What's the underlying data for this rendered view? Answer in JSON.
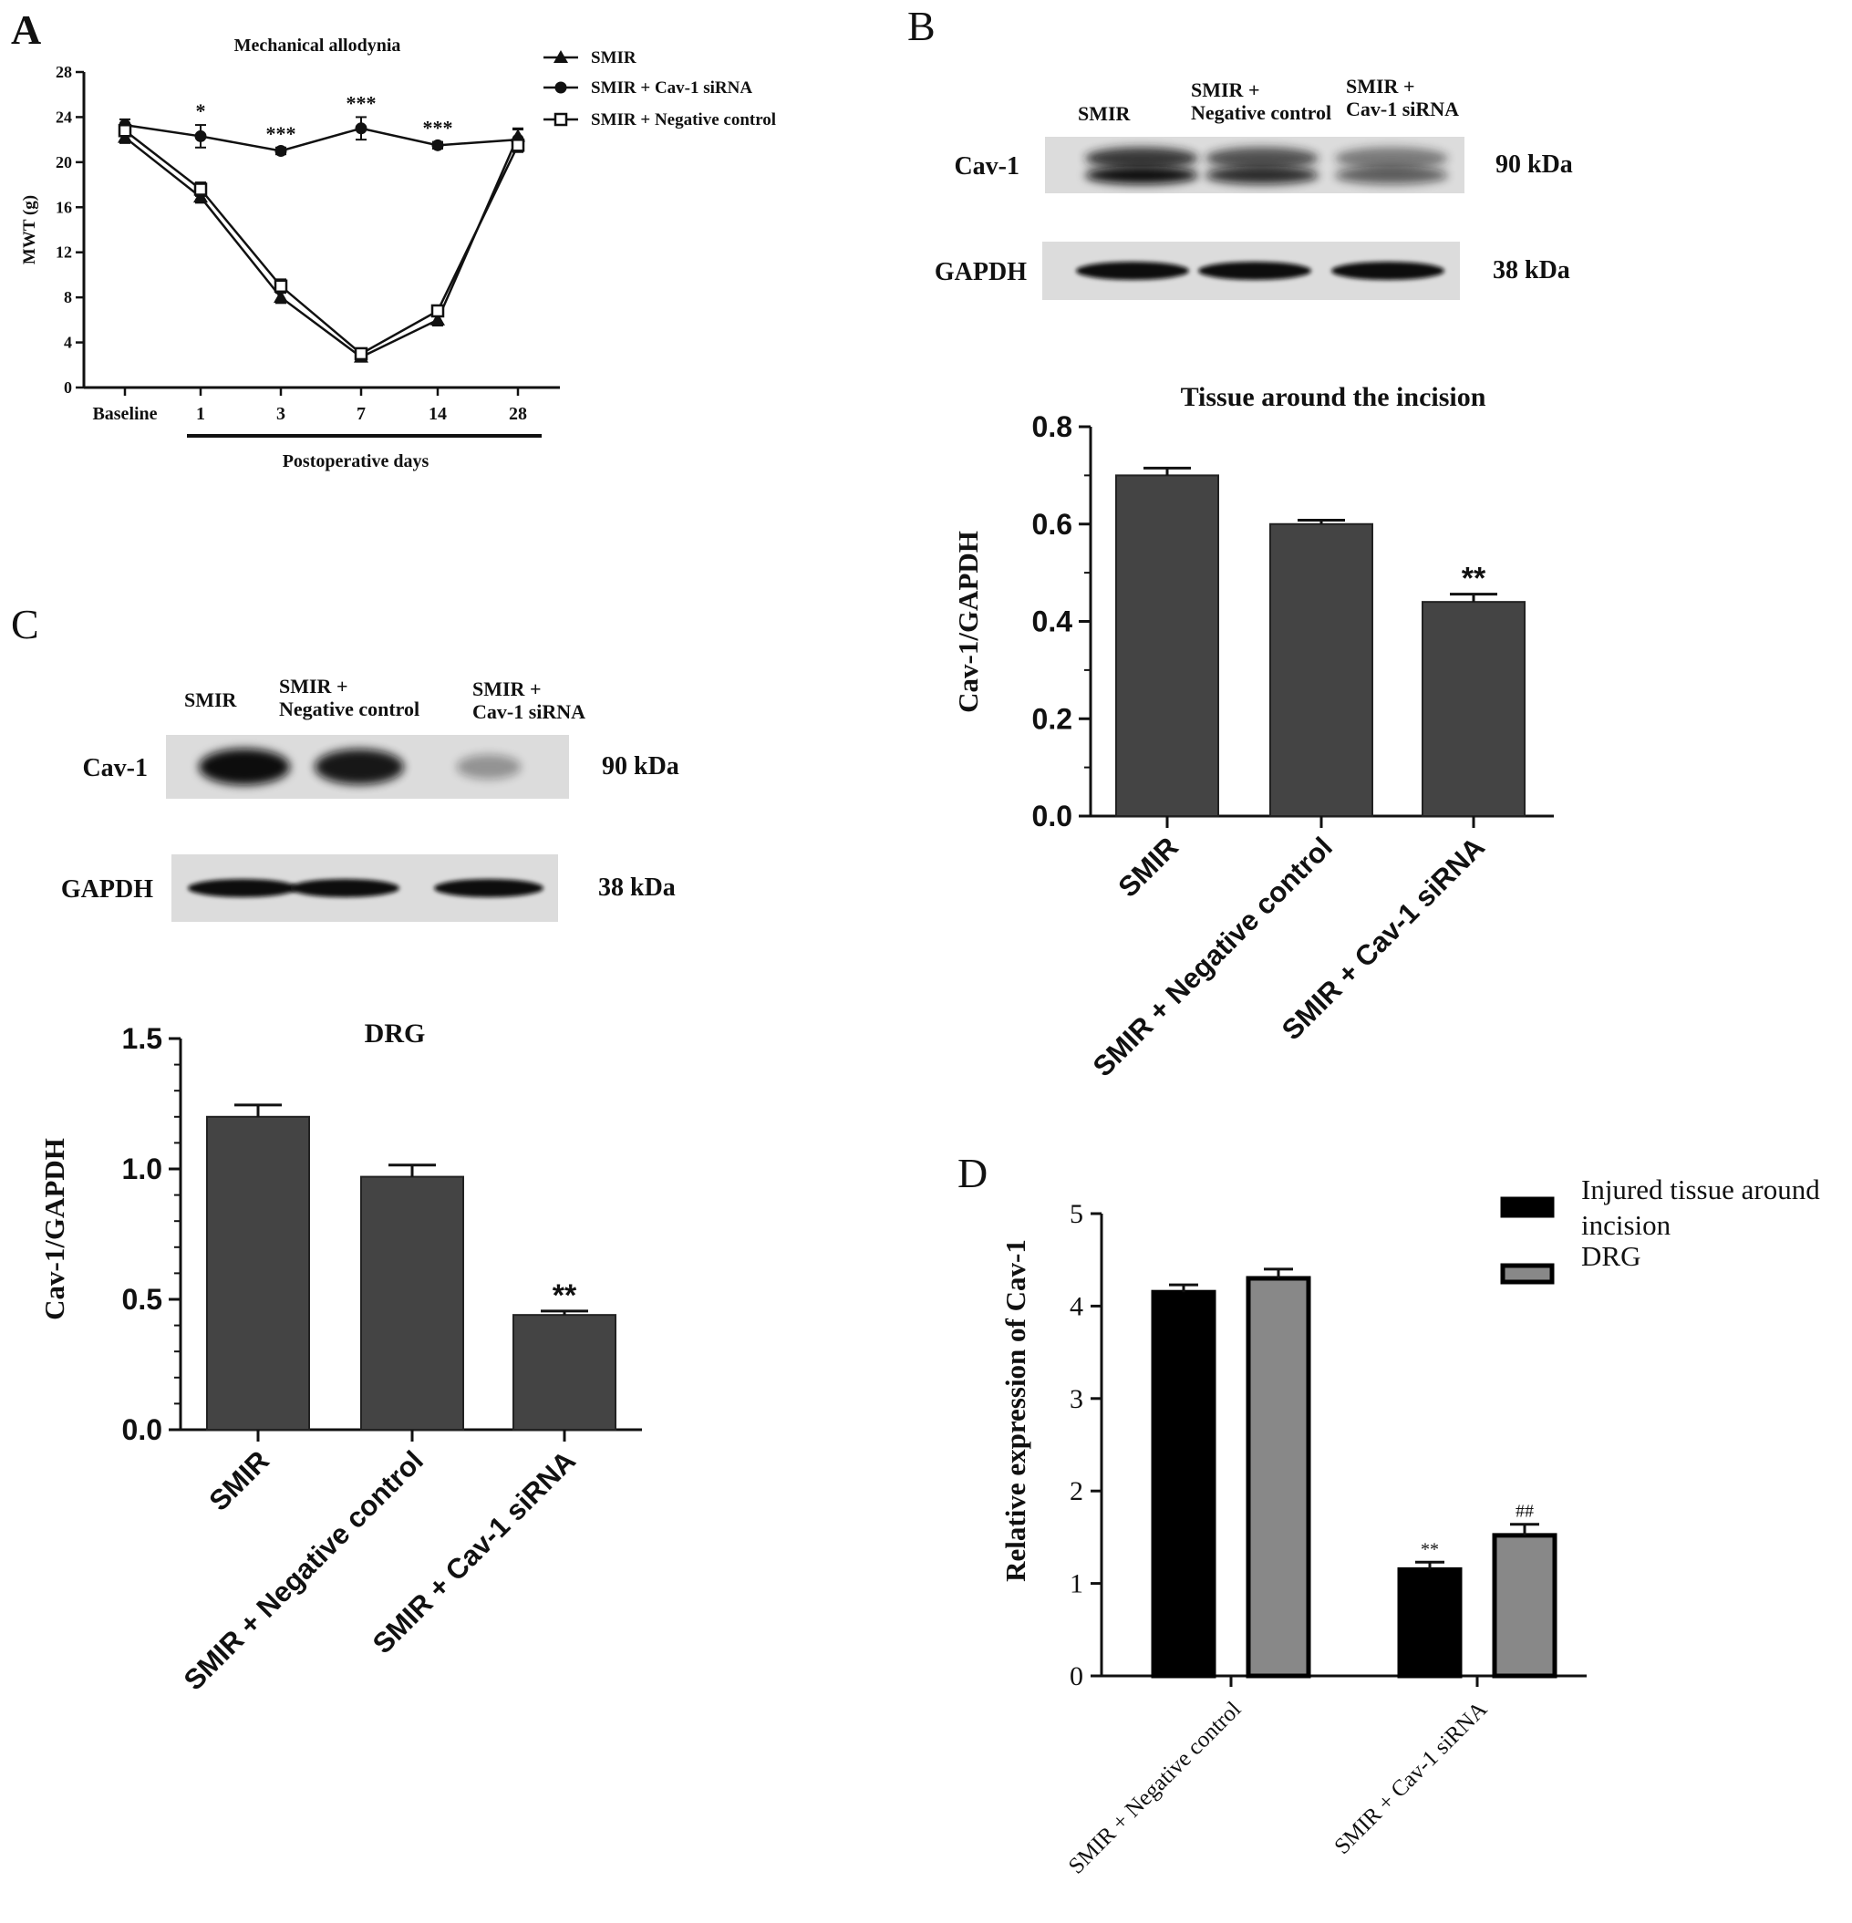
{
  "figure": {
    "panels": {
      "A": "A",
      "B": "B",
      "C": "C",
      "D": "D"
    }
  },
  "blot_B": {
    "lanes": [
      [
        "SMIR"
      ],
      [
        "SMIR +",
        "Negative control"
      ],
      [
        "SMIR +",
        "Cav-1 siRNA"
      ]
    ],
    "rows": [
      {
        "label": "Cav-1",
        "kda": "90 kDa",
        "intensity": [
          1.0,
          0.85,
          0.6
        ]
      },
      {
        "label": "GAPDH",
        "kda": "38 kDa",
        "intensity": [
          1.0,
          1.0,
          1.0
        ]
      }
    ]
  },
  "blot_C": {
    "lanes": [
      [
        "SMIR"
      ],
      [
        "SMIR +",
        "Negative control"
      ],
      [
        "SMIR +",
        "Cav-1 siRNA"
      ]
    ],
    "rows": [
      {
        "label": "Cav-1",
        "kda": "90 kDa",
        "intensity": [
          1.0,
          0.95,
          0.35
        ]
      },
      {
        "label": "GAPDH",
        "kda": "38 kDa",
        "intensity": [
          1.0,
          1.0,
          1.0
        ]
      }
    ]
  },
  "chart_data": [
    {
      "panel": "A",
      "type": "line",
      "title": "Mechanical allodynia",
      "xlabel": "Postoperative days",
      "ylabel": "MWT (g)",
      "categories": [
        "Baseline",
        "1",
        "3",
        "7",
        "14",
        "28"
      ],
      "ylim": [
        0,
        28
      ],
      "yticks": [
        "0",
        "4",
        "8",
        "12",
        "16",
        "20",
        "24",
        "28"
      ],
      "legend_position": "top-right",
      "series": [
        {
          "name": "SMIR",
          "marker": "triangle",
          "values": [
            22.2,
            16.9,
            8.0,
            2.7,
            6.0,
            22.3
          ],
          "errors": [
            0.5,
            0.5,
            0.5,
            0.4,
            0.5,
            0.6
          ]
        },
        {
          "name": "SMIR + Cav-1 siRNA",
          "marker": "circle",
          "values": [
            23.3,
            22.3,
            21.0,
            23.0,
            21.5,
            22.0
          ],
          "errors": [
            0.5,
            1.0,
            0.3,
            1.0,
            0.3,
            1.0
          ]
        },
        {
          "name": "SMIR + Negative control",
          "marker": "square",
          "values": [
            22.8,
            17.6,
            9.0,
            3.0,
            6.8,
            21.5
          ],
          "errors": [
            0.5,
            0.6,
            0.6,
            0.3,
            0.4,
            0.6
          ]
        }
      ],
      "annotations": [
        "",
        "*",
        "***",
        "***",
        "***",
        ""
      ]
    },
    {
      "panel": "B",
      "type": "bar",
      "title": "Tissue around the incision",
      "ylabel": "Cav-1/GAPDH",
      "categories": [
        "SMIR",
        "SMIR + Negative control",
        "SMIR + Cav-1 siRNA"
      ],
      "values": [
        0.7,
        0.6,
        0.44
      ],
      "errors": [
        0.015,
        0.008,
        0.016
      ],
      "ylim": [
        0,
        0.8
      ],
      "yticks": [
        "0.0",
        "0.2",
        "0.4",
        "0.6",
        "0.8"
      ],
      "annotations": [
        "",
        "",
        "**"
      ],
      "bar_color": "#444444"
    },
    {
      "panel": "C",
      "type": "bar",
      "title": "DRG",
      "ylabel": "Cav-1/GAPDH",
      "categories": [
        "SMIR",
        "SMIR + Negative control",
        "SMIR + Cav-1 siRNA"
      ],
      "values": [
        1.2,
        0.97,
        0.44
      ],
      "errors": [
        0.045,
        0.045,
        0.015
      ],
      "ylim": [
        0,
        1.5
      ],
      "yticks": [
        "0.0",
        "0.5",
        "1.0",
        "1.5"
      ],
      "annotations": [
        "",
        "",
        "**"
      ],
      "bar_color": "#444444"
    },
    {
      "panel": "D",
      "type": "bar",
      "ylabel": "Relative expression of Cav-1",
      "categories": [
        "SMIR + Negative control",
        "SMIR + Cav-1 siRNA"
      ],
      "ylim": [
        0,
        5
      ],
      "yticks": [
        "0",
        "1",
        "2",
        "3",
        "4",
        "5"
      ],
      "legend_position": "top-right",
      "series": [
        {
          "name": "Injured tissue around incision",
          "legend_lines": [
            "Injured tissue around",
            "incision"
          ],
          "color": "#000000",
          "values": [
            4.15,
            1.15
          ],
          "errors": [
            0.08,
            0.08
          ],
          "annotations": [
            "",
            "**"
          ]
        },
        {
          "name": "DRG",
          "legend_lines": [
            "DRG"
          ],
          "color": "#888888",
          "values": [
            4.3,
            1.52
          ],
          "errors": [
            0.1,
            0.12
          ],
          "annotations": [
            "",
            "##"
          ]
        }
      ]
    }
  ]
}
